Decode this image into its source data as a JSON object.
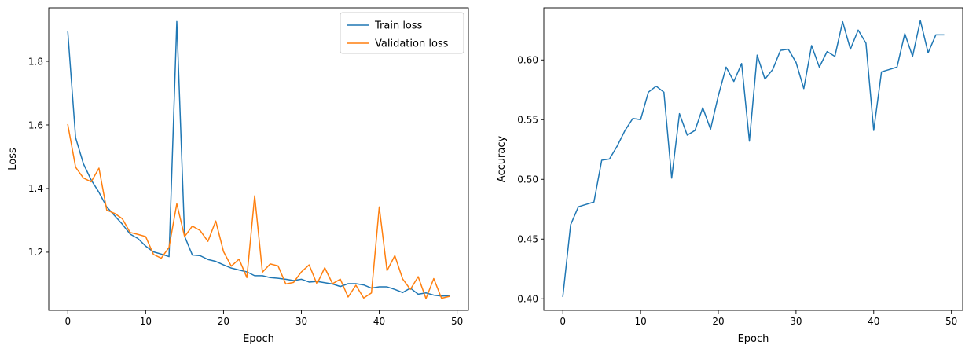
{
  "chart_data": [
    {
      "type": "line",
      "xlabel": "Epoch",
      "ylabel": "Loss",
      "xlim": [
        -2.45,
        51.45
      ],
      "ylim": [
        1.017,
        1.968
      ],
      "xticks": [
        0,
        10,
        20,
        30,
        40,
        50
      ],
      "yticks": [
        1.2,
        1.4,
        1.6,
        1.8
      ],
      "ytick_labels": [
        "1.2",
        "1.4",
        "1.6",
        "1.8"
      ],
      "grid": false,
      "legend": "upper right",
      "x": [
        0,
        1,
        2,
        3,
        4,
        5,
        6,
        7,
        8,
        9,
        10,
        11,
        12,
        13,
        14,
        15,
        16,
        17,
        18,
        19,
        20,
        21,
        22,
        23,
        24,
        25,
        26,
        27,
        28,
        29,
        30,
        31,
        32,
        33,
        34,
        35,
        36,
        37,
        38,
        39,
        40,
        41,
        42,
        43,
        44,
        45,
        46,
        47,
        48,
        49
      ],
      "series": [
        {
          "name": "Train loss",
          "color": "#1f77b4",
          "values": [
            1.892,
            1.56,
            1.478,
            1.427,
            1.388,
            1.342,
            1.315,
            1.288,
            1.257,
            1.243,
            1.219,
            1.201,
            1.194,
            1.186,
            1.925,
            1.25,
            1.191,
            1.189,
            1.177,
            1.171,
            1.16,
            1.15,
            1.144,
            1.138,
            1.126,
            1.126,
            1.12,
            1.118,
            1.115,
            1.111,
            1.115,
            1.106,
            1.108,
            1.104,
            1.1,
            1.092,
            1.101,
            1.101,
            1.097,
            1.087,
            1.091,
            1.091,
            1.083,
            1.073,
            1.087,
            1.068,
            1.072,
            1.065,
            1.062,
            1.063
          ]
        },
        {
          "name": "Validation loss",
          "color": "#ff7f0e",
          "values": [
            1.601,
            1.467,
            1.433,
            1.421,
            1.464,
            1.332,
            1.322,
            1.305,
            1.262,
            1.256,
            1.249,
            1.193,
            1.181,
            1.215,
            1.352,
            1.249,
            1.282,
            1.268,
            1.234,
            1.298,
            1.202,
            1.156,
            1.178,
            1.12,
            1.377,
            1.137,
            1.163,
            1.157,
            1.1,
            1.105,
            1.138,
            1.16,
            1.1,
            1.151,
            1.101,
            1.115,
            1.059,
            1.096,
            1.056,
            1.072,
            1.342,
            1.142,
            1.189,
            1.116,
            1.083,
            1.123,
            1.054,
            1.117,
            1.055,
            1.061
          ]
        }
      ]
    },
    {
      "type": "line",
      "xlabel": "Epoch",
      "ylabel": "Accuracy",
      "xlim": [
        -2.45,
        51.45
      ],
      "ylim": [
        0.3903,
        0.6436
      ],
      "xticks": [
        0,
        10,
        20,
        30,
        40,
        50
      ],
      "yticks": [
        0.4,
        0.45,
        0.5,
        0.55,
        0.6
      ],
      "ytick_labels": [
        "0.40",
        "0.45",
        "0.50",
        "0.55",
        "0.60"
      ],
      "grid": false,
      "legend": "none",
      "x": [
        0,
        1,
        2,
        3,
        4,
        5,
        6,
        7,
        8,
        9,
        10,
        11,
        12,
        13,
        14,
        15,
        16,
        17,
        18,
        19,
        20,
        21,
        22,
        23,
        24,
        25,
        26,
        27,
        28,
        29,
        30,
        31,
        32,
        33,
        34,
        35,
        36,
        37,
        38,
        39,
        40,
        41,
        42,
        43,
        44,
        45,
        46,
        47,
        48,
        49
      ],
      "series": [
        {
          "color": "#1f77b4",
          "values": [
            0.402,
            0.462,
            0.477,
            0.479,
            0.481,
            0.516,
            0.517,
            0.528,
            0.541,
            0.551,
            0.55,
            0.573,
            0.578,
            0.573,
            0.501,
            0.555,
            0.537,
            0.541,
            0.56,
            0.542,
            0.57,
            0.594,
            0.582,
            0.597,
            0.532,
            0.604,
            0.584,
            0.592,
            0.608,
            0.609,
            0.598,
            0.576,
            0.612,
            0.594,
            0.607,
            0.603,
            0.632,
            0.609,
            0.625,
            0.614,
            0.541,
            0.59,
            0.592,
            0.594,
            0.622,
            0.603,
            0.633,
            0.606,
            0.621,
            0.621
          ]
        }
      ]
    }
  ]
}
